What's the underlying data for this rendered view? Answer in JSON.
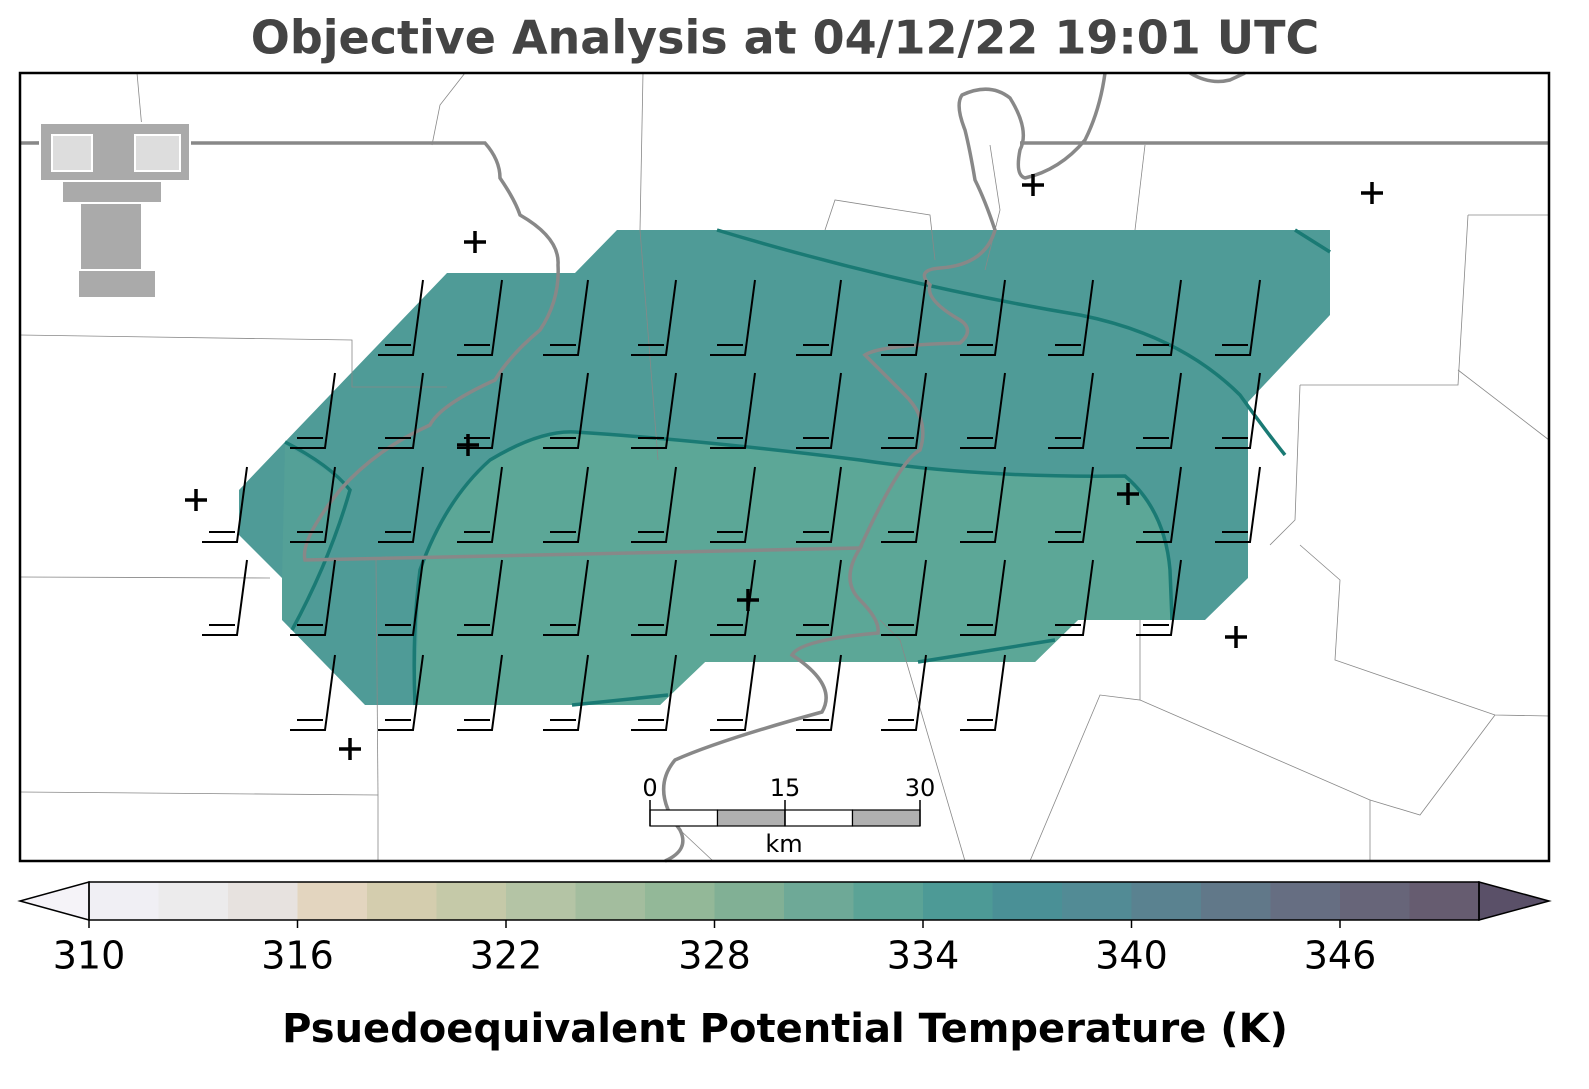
{
  "title": "Objective Analysis at 04/12/22 19:01 UTC",
  "scale_bar": {
    "ticks": [
      0,
      15,
      30
    ],
    "limits": [
      0,
      30
    ],
    "unit": "km"
  },
  "colorbar": {
    "label": "Psuedoequivalent Potential Temperature (K)",
    "limits": [
      310,
      350
    ],
    "ticks": [
      310,
      316,
      322,
      328,
      334,
      340,
      346
    ],
    "colors": [
      "#f0eff4",
      "#ecebec",
      "#e7e2df",
      "#e3d5bf",
      "#d4cdae",
      "#c5c9a8",
      "#b4c4a5",
      "#a3bd9e",
      "#93b898",
      "#81b095",
      "#6ea997",
      "#5ba396",
      "#4d9a96",
      "#4a9096",
      "#528b95",
      "#5a8290",
      "#617889",
      "#666e82",
      "#676579",
      "#665c70"
    ],
    "under_color": "#f5f3f8",
    "over_color": "#5a5068"
  }
}
